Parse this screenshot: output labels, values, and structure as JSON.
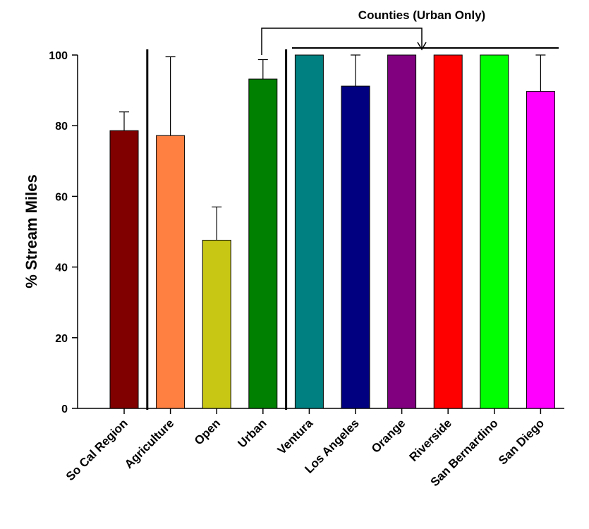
{
  "chart_data": {
    "type": "bar",
    "title": "",
    "xlabel": "",
    "ylabel": "% Stream Miles",
    "ylim": [
      0,
      100
    ],
    "yticks": [
      0,
      20,
      40,
      60,
      80,
      100
    ],
    "grid": false,
    "legend": "none",
    "categories": [
      "So Cal Region",
      "Agriculture",
      "Open",
      "Urban",
      "Ventura",
      "Los Angeles",
      "Orange",
      "Riverside",
      "San Bernardino",
      "San Diego"
    ],
    "values": [
      78.6,
      77.2,
      47.6,
      93.2,
      100,
      91.2,
      100,
      100,
      100,
      89.7
    ],
    "error_upper": [
      5.3,
      22.3,
      9.4,
      5.5,
      0,
      8.8,
      0,
      0,
      0,
      10.3
    ],
    "colors": [
      "#800000",
      "#ff8040",
      "#c8c814",
      "#008000",
      "#008080",
      "#000080",
      "#800080",
      "#ff0000",
      "#00ff00",
      "#ff00ff"
    ],
    "annotation": "Counties (Urban Only)",
    "separators_after_index": [
      0,
      3
    ]
  }
}
